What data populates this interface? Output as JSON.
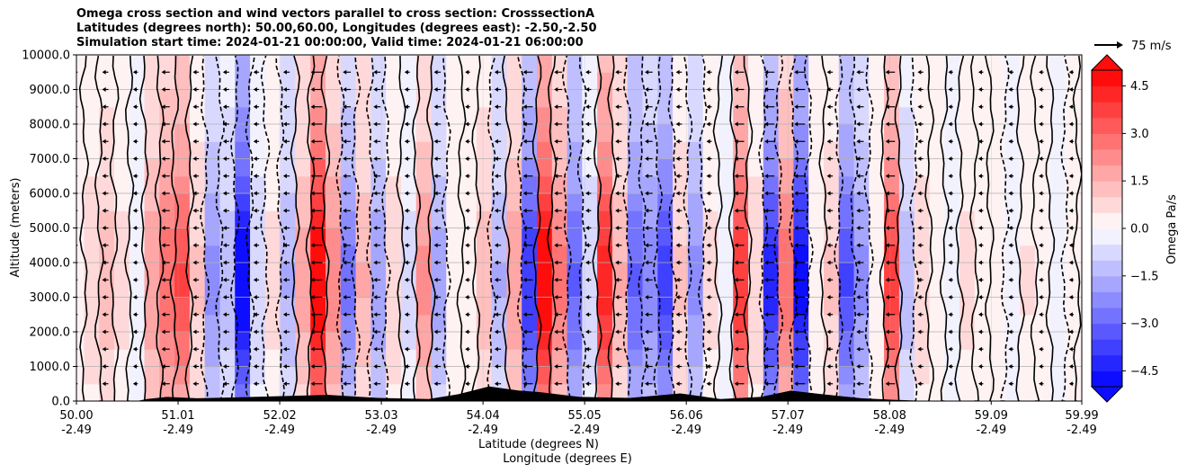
{
  "chart_data": {
    "type": "heatmap",
    "title_lines": [
      "Omega cross section and wind vectors parallel to cross section: CrosssectionA",
      "Latitudes (degrees north): 50.00,60.00, Longitudes (degrees east): -2.50,-2.50",
      "Simulation start time: 2024-01-21 00:00:00, Valid time: 2024-01-21 06:00:00"
    ],
    "ylabel": "Altitude (meters)",
    "xlabel_line1": "Latitude (degrees N)",
    "xlabel_line2": "Longitude (degrees E)",
    "ylim": [
      0,
      10000
    ],
    "xlim": [
      50.0,
      59.99
    ],
    "y_ticks": [
      "0.0",
      "1000.0",
      "2000.0",
      "3000.0",
      "4000.0",
      "5000.0",
      "6000.0",
      "7000.0",
      "8000.0",
      "9000.0",
      "10000.0"
    ],
    "x_ticks": [
      {
        "lat": "50.00",
        "lon": "-2.49"
      },
      {
        "lat": "51.01",
        "lon": "-2.49"
      },
      {
        "lat": "52.02",
        "lon": "-2.49"
      },
      {
        "lat": "53.03",
        "lon": "-2.49"
      },
      {
        "lat": "54.04",
        "lon": "-2.49"
      },
      {
        "lat": "55.05",
        "lon": "-2.49"
      },
      {
        "lat": "56.06",
        "lon": "-2.49"
      },
      {
        "lat": "57.07",
        "lon": "-2.49"
      },
      {
        "lat": "58.08",
        "lon": "-2.49"
      },
      {
        "lat": "59.09",
        "lon": "-2.49"
      },
      {
        "lat": "59.99",
        "lon": "-2.49"
      }
    ],
    "colorbar": {
      "label": "Omega Pa/s",
      "range": [
        -5.0,
        5.0
      ],
      "levels": 20,
      "ticks": [
        "-4.5",
        "-3.0",
        "-1.5",
        "0.0",
        "1.5",
        "3.0",
        "4.5"
      ],
      "extend": "both",
      "colors": {
        "neg": "#0000ff",
        "mid": "#ffffff",
        "pos": "#ff0000"
      }
    },
    "vector_key": "75 m/s",
    "grid": true,
    "columns": [
      {
        "lat": 50.0,
        "omega": 0.4
      },
      {
        "lat": 50.15,
        "omega": 0.8
      },
      {
        "lat": 50.3,
        "omega": 1.2
      },
      {
        "lat": 50.45,
        "omega": 0.6
      },
      {
        "lat": 50.6,
        "omega": -0.3
      },
      {
        "lat": 50.75,
        "omega": 1.8
      },
      {
        "lat": 50.9,
        "omega": 2.6
      },
      {
        "lat": 51.05,
        "omega": 3.2
      },
      {
        "lat": 51.2,
        "omega": 1.0
      },
      {
        "lat": 51.35,
        "omega": -2.0
      },
      {
        "lat": 51.5,
        "omega": -1.2
      },
      {
        "lat": 51.65,
        "omega": -4.8
      },
      {
        "lat": 51.8,
        "omega": -0.8
      },
      {
        "lat": 51.95,
        "omega": 0.6
      },
      {
        "lat": 52.1,
        "omega": -1.4
      },
      {
        "lat": 52.25,
        "omega": 1.6
      },
      {
        "lat": 52.4,
        "omega": 4.9
      },
      {
        "lat": 52.55,
        "omega": 2.2
      },
      {
        "lat": 52.7,
        "omega": -2.4
      },
      {
        "lat": 52.85,
        "omega": 1.4
      },
      {
        "lat": 53.0,
        "omega": -1.8
      },
      {
        "lat": 53.15,
        "omega": 0.8
      },
      {
        "lat": 53.3,
        "omega": -0.6
      },
      {
        "lat": 53.45,
        "omega": 2.0
      },
      {
        "lat": 53.6,
        "omega": -1.6
      },
      {
        "lat": 53.75,
        "omega": 0.4
      },
      {
        "lat": 53.9,
        "omega": 0.3
      },
      {
        "lat": 54.05,
        "omega": 1.2
      },
      {
        "lat": 54.2,
        "omega": -1.4
      },
      {
        "lat": 54.35,
        "omega": 1.8
      },
      {
        "lat": 54.5,
        "omega": -3.6
      },
      {
        "lat": 54.65,
        "omega": 4.8
      },
      {
        "lat": 54.8,
        "omega": 2.4
      },
      {
        "lat": 54.95,
        "omega": -2.8
      },
      {
        "lat": 55.1,
        "omega": -0.8
      },
      {
        "lat": 55.25,
        "omega": 4.0
      },
      {
        "lat": 55.4,
        "omega": 1.4
      },
      {
        "lat": 55.55,
        "omega": -2.8
      },
      {
        "lat": 55.7,
        "omega": -2.2
      },
      {
        "lat": 55.85,
        "omega": -3.4
      },
      {
        "lat": 56.0,
        "omega": 1.0
      },
      {
        "lat": 56.15,
        "omega": -2.0
      },
      {
        "lat": 56.3,
        "omega": 0.6
      },
      {
        "lat": 56.45,
        "omega": -0.4
      },
      {
        "lat": 56.6,
        "omega": 3.6
      },
      {
        "lat": 56.75,
        "omega": 0.8
      },
      {
        "lat": 56.9,
        "omega": -3.8
      },
      {
        "lat": 57.05,
        "omega": 2.6
      },
      {
        "lat": 57.2,
        "omega": -4.4
      },
      {
        "lat": 57.35,
        "omega": 0.2
      },
      {
        "lat": 57.5,
        "omega": 1.0
      },
      {
        "lat": 57.65,
        "omega": -3.2
      },
      {
        "lat": 57.8,
        "omega": -2.0
      },
      {
        "lat": 57.95,
        "omega": 0.4
      },
      {
        "lat": 58.1,
        "omega": 3.4
      },
      {
        "lat": 58.25,
        "omega": -1.2
      },
      {
        "lat": 58.4,
        "omega": 0.8
      },
      {
        "lat": 58.55,
        "omega": 0.4
      },
      {
        "lat": 58.7,
        "omega": -0.2
      },
      {
        "lat": 58.85,
        "omega": 0.6
      },
      {
        "lat": 59.0,
        "omega": 0.3
      },
      {
        "lat": 59.15,
        "omega": 0.2
      },
      {
        "lat": 59.3,
        "omega": -0.4
      },
      {
        "lat": 59.45,
        "omega": 0.5
      },
      {
        "lat": 59.6,
        "omega": 0.2
      },
      {
        "lat": 59.75,
        "omega": -0.2
      },
      {
        "lat": 59.9,
        "omega": 0.1
      },
      {
        "lat": 59.99,
        "omega": 0.0
      }
    ],
    "terrain": [
      {
        "lat": 50.6,
        "alt": 0
      },
      {
        "lat": 50.7,
        "alt": 60
      },
      {
        "lat": 50.9,
        "alt": 120
      },
      {
        "lat": 51.2,
        "alt": 80
      },
      {
        "lat": 51.5,
        "alt": 100
      },
      {
        "lat": 52.0,
        "alt": 140
      },
      {
        "lat": 52.5,
        "alt": 180
      },
      {
        "lat": 53.0,
        "alt": 90
      },
      {
        "lat": 53.5,
        "alt": 60
      },
      {
        "lat": 53.8,
        "alt": 200
      },
      {
        "lat": 54.1,
        "alt": 420
      },
      {
        "lat": 54.4,
        "alt": 300
      },
      {
        "lat": 54.6,
        "alt": 260
      },
      {
        "lat": 55.0,
        "alt": 120
      },
      {
        "lat": 55.5,
        "alt": 90
      },
      {
        "lat": 56.0,
        "alt": 220
      },
      {
        "lat": 56.4,
        "alt": 60
      },
      {
        "lat": 56.8,
        "alt": 120
      },
      {
        "lat": 57.1,
        "alt": 300
      },
      {
        "lat": 57.4,
        "alt": 200
      },
      {
        "lat": 57.8,
        "alt": 80
      },
      {
        "lat": 58.1,
        "alt": 40
      },
      {
        "lat": 58.5,
        "alt": 0
      }
    ]
  }
}
